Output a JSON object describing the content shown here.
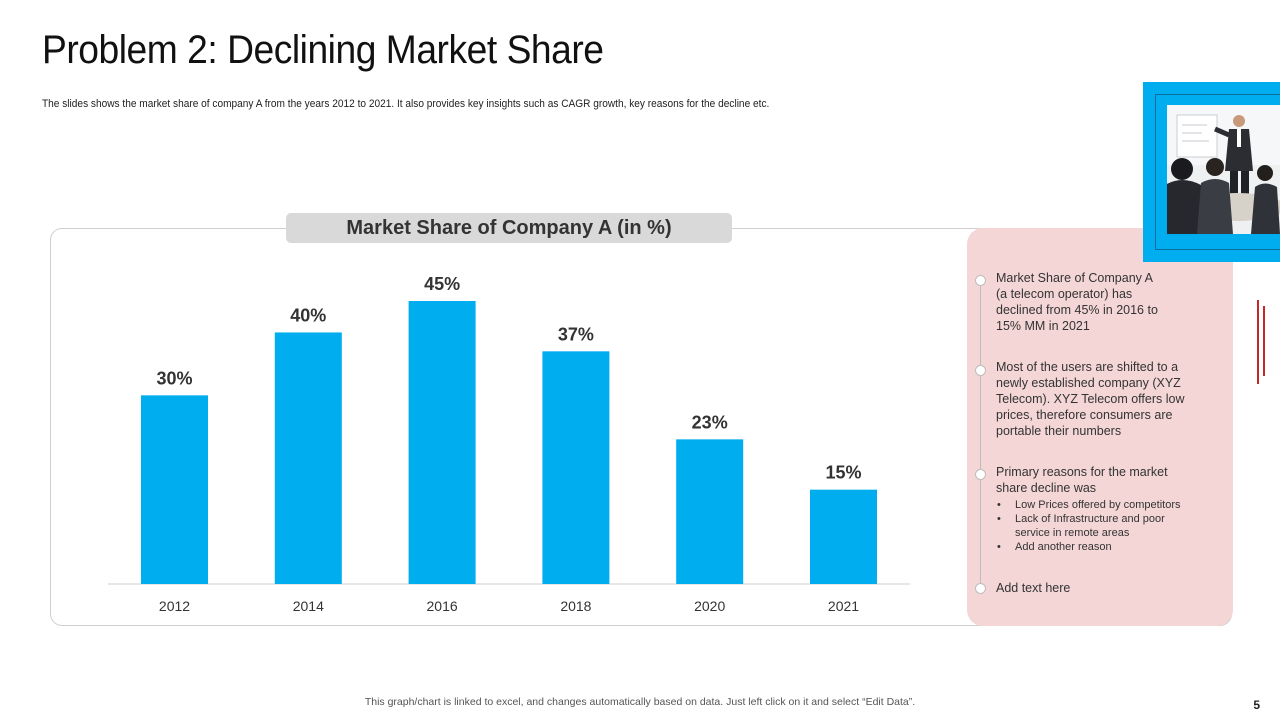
{
  "slide": {
    "title": "Problem 2: Declining Market Share",
    "subtitle": "The slides shows the market share of company A from the years 2012 to 2021. It also provides key insights such as CAGR growth, key reasons for the decline etc.",
    "footer_note": "This graph/chart is linked to excel, and changes automatically  based on data. Just left click on it and select “Edit Data”.",
    "page_number": "5"
  },
  "chart_data": {
    "type": "bar",
    "title": "Market Share of Company A (in %)",
    "categories": [
      "2012",
      "2014",
      "2016",
      "2018",
      "2020",
      "2021"
    ],
    "values": [
      30,
      40,
      45,
      37,
      23,
      15
    ],
    "value_labels": [
      "30%",
      "40%",
      "45%",
      "37%",
      "23%",
      "15%"
    ],
    "xlabel": "",
    "ylabel": "",
    "ylim": [
      0,
      50
    ],
    "bar_color": "#00adee",
    "grid": false
  },
  "insights": {
    "point1": "Market Share of Company A (a telecom operator) has declined from 45% in 2016 to 15% MM in 2021",
    "point2": "Most of the users are shifted to a newly established company (XYZ Telecom). XYZ Telecom offers low prices, therefore consumers are portable their numbers",
    "point3": "Primary reasons for the market share decline was",
    "point3_bullets": [
      "Low Prices offered by competitors",
      "Lack of Infrastructure and poor service in remote areas",
      "Add another reason"
    ],
    "point4": "Add text here"
  },
  "colors": {
    "accent": "#00adee",
    "panel_pink": "#f4d6d6",
    "red_accent": "#c62828"
  }
}
